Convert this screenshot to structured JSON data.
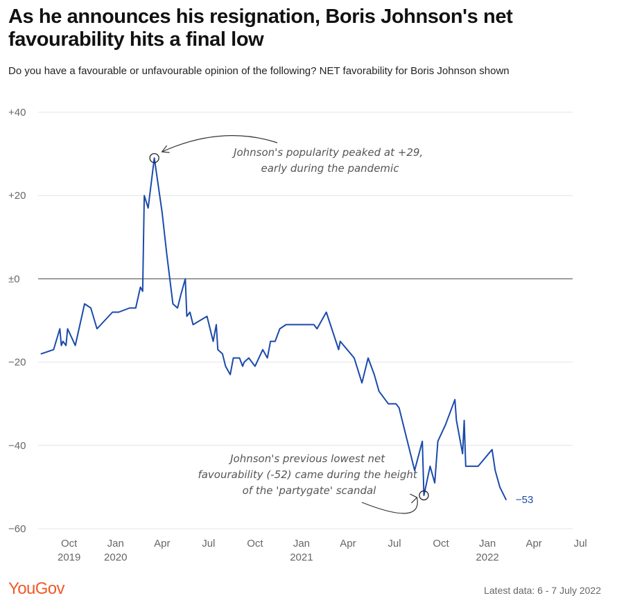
{
  "title": "As he announces his resignation, Boris Johnson's net favourability hits a final low",
  "subtitle": "Do you have a favourable or unfavourable opinion of the following? NET favorability for Boris Johnson shown",
  "footer": {
    "logo": "YouGov",
    "latest_data": "Latest data: 6 - 7 July 2022"
  },
  "colors": {
    "line": "#1a4aab",
    "grid": "#e4e4e4",
    "zero_line": "#444444",
    "brand": "#f05a28"
  },
  "chart_data": {
    "type": "line",
    "title": "NET favourability for Boris Johnson",
    "xlabel": "",
    "ylabel": "",
    "ylim": [
      -60,
      40
    ],
    "xlim_months": [
      0,
      34.5
    ],
    "x_unit": "months since 1 Aug 2019",
    "yticks": [
      {
        "value": 40,
        "label": "+40"
      },
      {
        "value": 20,
        "label": "+20"
      },
      {
        "value": 0,
        "label": "±0"
      },
      {
        "value": -20,
        "label": "−20"
      },
      {
        "value": -40,
        "label": "−40"
      },
      {
        "value": -60,
        "label": "−60"
      }
    ],
    "xticks": [
      {
        "value": 2,
        "line1": "Oct",
        "line2": "2019"
      },
      {
        "value": 5,
        "line1": "Jan",
        "line2": "2020"
      },
      {
        "value": 8,
        "line1": "Apr",
        "line2": ""
      },
      {
        "value": 11,
        "line1": "Jul",
        "line2": ""
      },
      {
        "value": 14,
        "line1": "Oct",
        "line2": ""
      },
      {
        "value": 17,
        "line1": "Jan",
        "line2": "2021"
      },
      {
        "value": 20,
        "line1": "Apr",
        "line2": ""
      },
      {
        "value": 23,
        "line1": "Jul",
        "line2": ""
      },
      {
        "value": 26,
        "line1": "Oct",
        "line2": ""
      },
      {
        "value": 29,
        "line1": "Jan",
        "line2": "2022"
      },
      {
        "value": 32,
        "line1": "Apr",
        "line2": ""
      },
      {
        "value": 35,
        "line1": "Jul",
        "line2": ""
      }
    ],
    "series": [
      {
        "name": "Boris Johnson net favourability",
        "points": [
          [
            0.2,
            -18
          ],
          [
            1.0,
            -17
          ],
          [
            1.4,
            -12
          ],
          [
            1.5,
            -16
          ],
          [
            1.6,
            -15
          ],
          [
            1.8,
            -16
          ],
          [
            1.9,
            -12
          ],
          [
            2.4,
            -16
          ],
          [
            3.0,
            -6
          ],
          [
            3.4,
            -7
          ],
          [
            3.8,
            -12
          ],
          [
            4.8,
            -8
          ],
          [
            5.2,
            -8
          ],
          [
            5.9,
            -7
          ],
          [
            6.3,
            -7
          ],
          [
            6.6,
            -2
          ],
          [
            6.75,
            -3
          ],
          [
            6.85,
            20
          ],
          [
            7.1,
            17
          ],
          [
            7.5,
            29
          ],
          [
            8.0,
            16
          ],
          [
            8.3,
            6
          ],
          [
            8.7,
            -6
          ],
          [
            9.0,
            -7
          ],
          [
            9.2,
            -4
          ],
          [
            9.5,
            0
          ],
          [
            9.6,
            -9
          ],
          [
            9.8,
            -8
          ],
          [
            10.0,
            -11
          ],
          [
            10.9,
            -9
          ],
          [
            11.3,
            -15
          ],
          [
            11.5,
            -11
          ],
          [
            11.6,
            -17
          ],
          [
            11.9,
            -18
          ],
          [
            12.1,
            -21
          ],
          [
            12.4,
            -23
          ],
          [
            12.6,
            -19
          ],
          [
            13.0,
            -19
          ],
          [
            13.2,
            -21
          ],
          [
            13.3,
            -20
          ],
          [
            13.6,
            -19
          ],
          [
            14.0,
            -21
          ],
          [
            14.5,
            -17
          ],
          [
            14.8,
            -19
          ],
          [
            15.0,
            -15
          ],
          [
            15.3,
            -15
          ],
          [
            15.6,
            -12
          ],
          [
            16.0,
            -11
          ],
          [
            17.8,
            -11
          ],
          [
            18.0,
            -12
          ],
          [
            18.6,
            -8
          ],
          [
            19.4,
            -17
          ],
          [
            19.5,
            -15
          ],
          [
            20.4,
            -19
          ],
          [
            20.9,
            -25
          ],
          [
            21.3,
            -19
          ],
          [
            21.7,
            -23
          ],
          [
            22.0,
            -27
          ],
          [
            22.6,
            -30
          ],
          [
            23.1,
            -30
          ],
          [
            23.3,
            -31
          ],
          [
            24.3,
            -46
          ],
          [
            24.8,
            -39
          ],
          [
            24.9,
            -52
          ],
          [
            25.3,
            -45
          ],
          [
            25.6,
            -49
          ],
          [
            25.8,
            -39
          ],
          [
            26.3,
            -35
          ],
          [
            26.9,
            -29
          ],
          [
            27.0,
            -34
          ],
          [
            27.4,
            -42
          ],
          [
            27.5,
            -34
          ],
          [
            27.6,
            -45
          ],
          [
            28.4,
            -45
          ],
          [
            29.3,
            -41
          ],
          [
            29.5,
            -46
          ],
          [
            29.8,
            -50
          ],
          [
            30.2,
            -53
          ]
        ]
      }
    ],
    "end_label": "−53",
    "annotations": [
      {
        "id": "peak",
        "text_lines": [
          "Johnson's popularity peaked at +29,",
          "early during the pandemic"
        ],
        "x": 7.5,
        "y": 29
      },
      {
        "id": "low",
        "text_lines": [
          "Johnson's previous lowest net",
          "favourability (-52) came during the height",
          "of the 'partygate' scandal"
        ],
        "x": 24.9,
        "y": -52
      }
    ]
  }
}
